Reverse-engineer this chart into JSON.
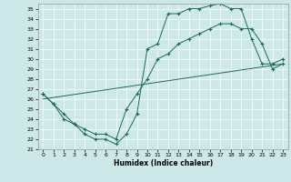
{
  "xlabel": "Humidex (Indice chaleur)",
  "bg_color": "#cce8e8",
  "line_color": "#1a6b5a",
  "xlim": [
    -0.5,
    23.5
  ],
  "ylim": [
    21,
    35.5
  ],
  "yticks": [
    21,
    22,
    23,
    24,
    25,
    26,
    27,
    28,
    29,
    30,
    31,
    32,
    33,
    34,
    35
  ],
  "xticks": [
    0,
    1,
    2,
    3,
    4,
    5,
    6,
    7,
    8,
    9,
    10,
    11,
    12,
    13,
    14,
    15,
    16,
    17,
    18,
    19,
    20,
    21,
    22,
    23
  ],
  "line1_x": [
    0,
    1,
    2,
    3,
    4,
    5,
    6,
    7,
    8,
    9,
    10,
    11,
    12,
    13,
    14,
    15,
    16,
    17,
    18,
    19,
    20,
    21,
    22,
    23
  ],
  "line1_y": [
    26.5,
    25.5,
    24.5,
    23.5,
    22.5,
    22.0,
    22.0,
    21.5,
    22.5,
    24.5,
    31.0,
    31.5,
    34.5,
    34.5,
    35.0,
    35.0,
    35.3,
    35.5,
    35.0,
    35.0,
    32.0,
    29.5,
    29.5,
    30.0
  ],
  "line2_x": [
    0,
    1,
    2,
    3,
    4,
    5,
    6,
    7,
    8,
    9,
    10,
    11,
    12,
    13,
    14,
    15,
    16,
    17,
    18,
    19,
    20,
    21,
    22,
    23
  ],
  "line2_y": [
    26.5,
    25.5,
    24.0,
    23.5,
    23.0,
    22.5,
    22.5,
    22.0,
    25.0,
    26.5,
    28.0,
    30.0,
    30.5,
    31.5,
    32.0,
    32.5,
    33.0,
    33.5,
    33.5,
    33.0,
    33.0,
    31.5,
    29.0,
    29.5
  ],
  "line3_x": [
    0,
    23
  ],
  "line3_y": [
    26.0,
    29.5
  ]
}
